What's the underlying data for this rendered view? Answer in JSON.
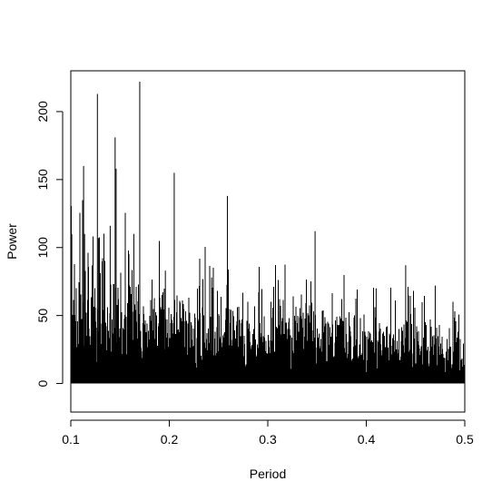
{
  "chart_data": {
    "type": "line",
    "title": "",
    "xlabel": "Period",
    "ylabel": "Power",
    "xlim": [
      0.1,
      0.5
    ],
    "ylim": [
      -21,
      230
    ],
    "x_ticks": [
      "0.1",
      "0.2",
      "0.3",
      "0.4",
      "0.5"
    ],
    "y_ticks": [
      "0",
      "50",
      "100",
      "150",
      "200"
    ],
    "grid": false,
    "legend": "none",
    "series": [
      {
        "style": "histogram spikes from 0",
        "color": "#000000",
        "approx_n_points": 4000,
        "baseline_trend": [
          [
            0.1,
            45
          ],
          [
            0.15,
            40
          ],
          [
            0.2,
            35
          ],
          [
            0.25,
            30
          ],
          [
            0.3,
            28
          ],
          [
            0.35,
            26
          ],
          [
            0.4,
            24
          ],
          [
            0.45,
            22
          ],
          [
            0.5,
            20
          ]
        ],
        "notable_peaks": [
          {
            "x": 0.101,
            "y": 110
          },
          {
            "x": 0.113,
            "y": 160
          },
          {
            "x": 0.114,
            "y": 110
          },
          {
            "x": 0.127,
            "y": 213
          },
          {
            "x": 0.128,
            "y": 107
          },
          {
            "x": 0.14,
            "y": 116
          },
          {
            "x": 0.145,
            "y": 181
          },
          {
            "x": 0.146,
            "y": 158
          },
          {
            "x": 0.164,
            "y": 110
          },
          {
            "x": 0.17,
            "y": 222
          },
          {
            "x": 0.196,
            "y": 83
          },
          {
            "x": 0.205,
            "y": 155
          },
          {
            "x": 0.243,
            "y": 78
          },
          {
            "x": 0.259,
            "y": 138
          },
          {
            "x": 0.348,
            "y": 112
          },
          {
            "x": 0.41,
            "y": 70
          },
          {
            "x": 0.44,
            "y": 87
          },
          {
            "x": 0.47,
            "y": 72
          }
        ]
      }
    ]
  }
}
